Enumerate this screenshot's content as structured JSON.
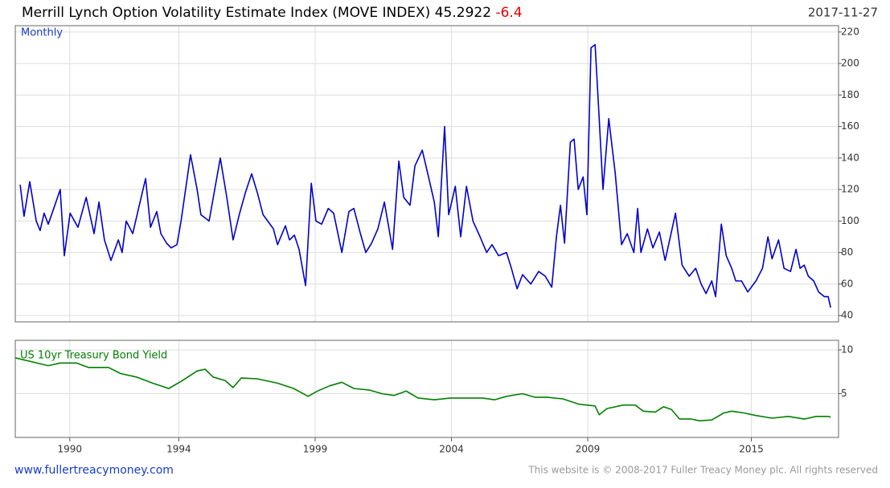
{
  "header": {
    "title": "Merrill Lynch Option Volatility Estimate Index (MOVE INDEX)",
    "last": 45.2922,
    "change": -6.4,
    "date": "2017-11-27"
  },
  "footer": {
    "site": "www.fullertreacymoney.com",
    "copyright": "This website is © 2008-2017 Fuller Treacy Money plc. All rights reserved"
  },
  "chart_data": [
    {
      "type": "line",
      "annotation": "Monthly",
      "grid": true,
      "xlim": [
        1988,
        2018.2
      ],
      "ylim": [
        36,
        224
      ],
      "yticks": [
        40,
        60,
        80,
        100,
        120,
        140,
        160,
        180,
        200,
        220
      ],
      "x": [
        1988.18,
        1988.32,
        1988.53,
        1988.77,
        1988.91,
        1989.06,
        1989.21,
        1989.45,
        1989.65,
        1989.8,
        1990.01,
        1990.3,
        1990.6,
        1990.89,
        1991.07,
        1991.27,
        1991.51,
        1991.78,
        1991.92,
        1992.07,
        1992.31,
        1992.51,
        1992.78,
        1992.96,
        1993.19,
        1993.34,
        1993.55,
        1993.72,
        1993.93,
        1994.08,
        1994.43,
        1994.67,
        1994.81,
        1995.11,
        1995.52,
        1995.76,
        1995.99,
        1996.23,
        1996.44,
        1996.67,
        1996.88,
        1997.09,
        1997.26,
        1997.47,
        1997.62,
        1997.91,
        1998.06,
        1998.24,
        1998.41,
        1998.65,
        1998.86,
        1999.03,
        1999.24,
        1999.48,
        1999.68,
        1999.98,
        2000.24,
        2000.42,
        2000.66,
        2000.86,
        2001.07,
        2001.3,
        2001.54,
        2001.84,
        2002.07,
        2002.25,
        2002.48,
        2002.66,
        2002.93,
        2003.16,
        2003.37,
        2003.52,
        2003.75,
        2003.9,
        2004.14,
        2004.34,
        2004.55,
        2004.79,
        2005.05,
        2005.29,
        2005.49,
        2005.73,
        2006.02,
        2006.2,
        2006.41,
        2006.61,
        2006.91,
        2007.2,
        2007.44,
        2007.68,
        2007.85,
        2008.0,
        2008.15,
        2008.36,
        2008.5,
        2008.65,
        2008.83,
        2008.97,
        2009.12,
        2009.27,
        2009.42,
        2009.56,
        2009.77,
        2010.01,
        2010.24,
        2010.45,
        2010.69,
        2010.83,
        2010.95,
        2011.19,
        2011.39,
        2011.63,
        2011.84,
        2012.07,
        2012.22,
        2012.46,
        2012.72,
        2012.96,
        2013.16,
        2013.34,
        2013.55,
        2013.69,
        2013.9,
        2014.08,
        2014.28,
        2014.43,
        2014.64,
        2014.87,
        2015.17,
        2015.41,
        2015.61,
        2015.76,
        2016.0,
        2016.2,
        2016.44,
        2016.64,
        2016.79,
        2016.94,
        2017.09,
        2017.29,
        2017.47,
        2017.68,
        2017.82,
        2017.91
      ],
      "series": [
        {
          "color": "#0000cc",
          "values": [
            123,
            103,
            125,
            100,
            94,
            105,
            98,
            110,
            120,
            78,
            105,
            96,
            115,
            92,
            112,
            88,
            75,
            88,
            80,
            100,
            92,
            107,
            127,
            96,
            106,
            92,
            86,
            83,
            85,
            100,
            142,
            120,
            104,
            100,
            140,
            115,
            88,
            105,
            118,
            130,
            118,
            104,
            100,
            95,
            85,
            97,
            88,
            91,
            82,
            59,
            124,
            100,
            98,
            108,
            105,
            80,
            106,
            108,
            92,
            80,
            86,
            95,
            112,
            82,
            138,
            115,
            110,
            135,
            145,
            128,
            112,
            90,
            160,
            104,
            122,
            90,
            122,
            100,
            90,
            80,
            85,
            78,
            80,
            70,
            57,
            66,
            60,
            68,
            65,
            58,
            90,
            110,
            86,
            150,
            152,
            120,
            128,
            104,
            210,
            212,
            165,
            120,
            165,
            130,
            85,
            92,
            80,
            108,
            80,
            95,
            83,
            93,
            75,
            93,
            105,
            72,
            65,
            70,
            60,
            54,
            62,
            52,
            98,
            78,
            70,
            62,
            62,
            55,
            62,
            70,
            90,
            76,
            88,
            70,
            68,
            82,
            70,
            72,
            65,
            62,
            55,
            52,
            52,
            45
          ]
        }
      ]
    },
    {
      "type": "line",
      "grid": true,
      "xlim": [
        1988,
        2018.2
      ],
      "ylim": [
        0,
        11.1
      ],
      "yticks": [
        5,
        10
      ],
      "xticks": [
        1990,
        1994,
        1999,
        2004,
        2009,
        2015
      ],
      "x": [
        1988.0,
        1989.21,
        1989.65,
        1990.24,
        1990.68,
        1991.42,
        1991.86,
        1992.45,
        1993.04,
        1993.63,
        1994.08,
        1994.67,
        1994.96,
        1995.26,
        1995.7,
        1995.99,
        1996.29,
        1996.88,
        1997.62,
        1998.21,
        1998.74,
        1999.09,
        1999.53,
        1999.98,
        2000.42,
        2001.01,
        2001.45,
        2001.89,
        2002.34,
        2002.78,
        2003.37,
        2003.96,
        2004.55,
        2005.14,
        2005.58,
        2006.02,
        2006.61,
        2007.06,
        2007.5,
        2008.09,
        2008.68,
        2009.27,
        2009.42,
        2009.71,
        2010.3,
        2010.74,
        2011.04,
        2011.48,
        2011.78,
        2012.07,
        2012.37,
        2012.81,
        2013.1,
        2013.55,
        2013.99,
        2014.28,
        2014.73,
        2015.17,
        2015.76,
        2016.35,
        2016.94,
        2017.38,
        2017.82,
        2017.91
      ],
      "series": [
        {
          "name": "US 10yr Treasury Bond Yield",
          "color": "#008000",
          "values": [
            9.1,
            8.2,
            8.5,
            8.5,
            8.0,
            8.0,
            7.3,
            6.9,
            6.2,
            5.6,
            6.4,
            7.6,
            7.8,
            6.9,
            6.5,
            5.7,
            6.8,
            6.7,
            6.2,
            5.6,
            4.7,
            5.3,
            5.9,
            6.3,
            5.6,
            5.4,
            5.0,
            4.8,
            5.3,
            4.5,
            4.3,
            4.5,
            4.5,
            4.5,
            4.3,
            4.7,
            5.0,
            4.6,
            4.6,
            4.4,
            3.8,
            3.6,
            2.6,
            3.3,
            3.7,
            3.7,
            3.0,
            2.9,
            3.5,
            3.2,
            2.1,
            2.1,
            1.9,
            2.0,
            2.8,
            3.0,
            2.8,
            2.5,
            2.2,
            2.4,
            2.1,
            2.4,
            2.4,
            2.3
          ]
        }
      ]
    }
  ]
}
